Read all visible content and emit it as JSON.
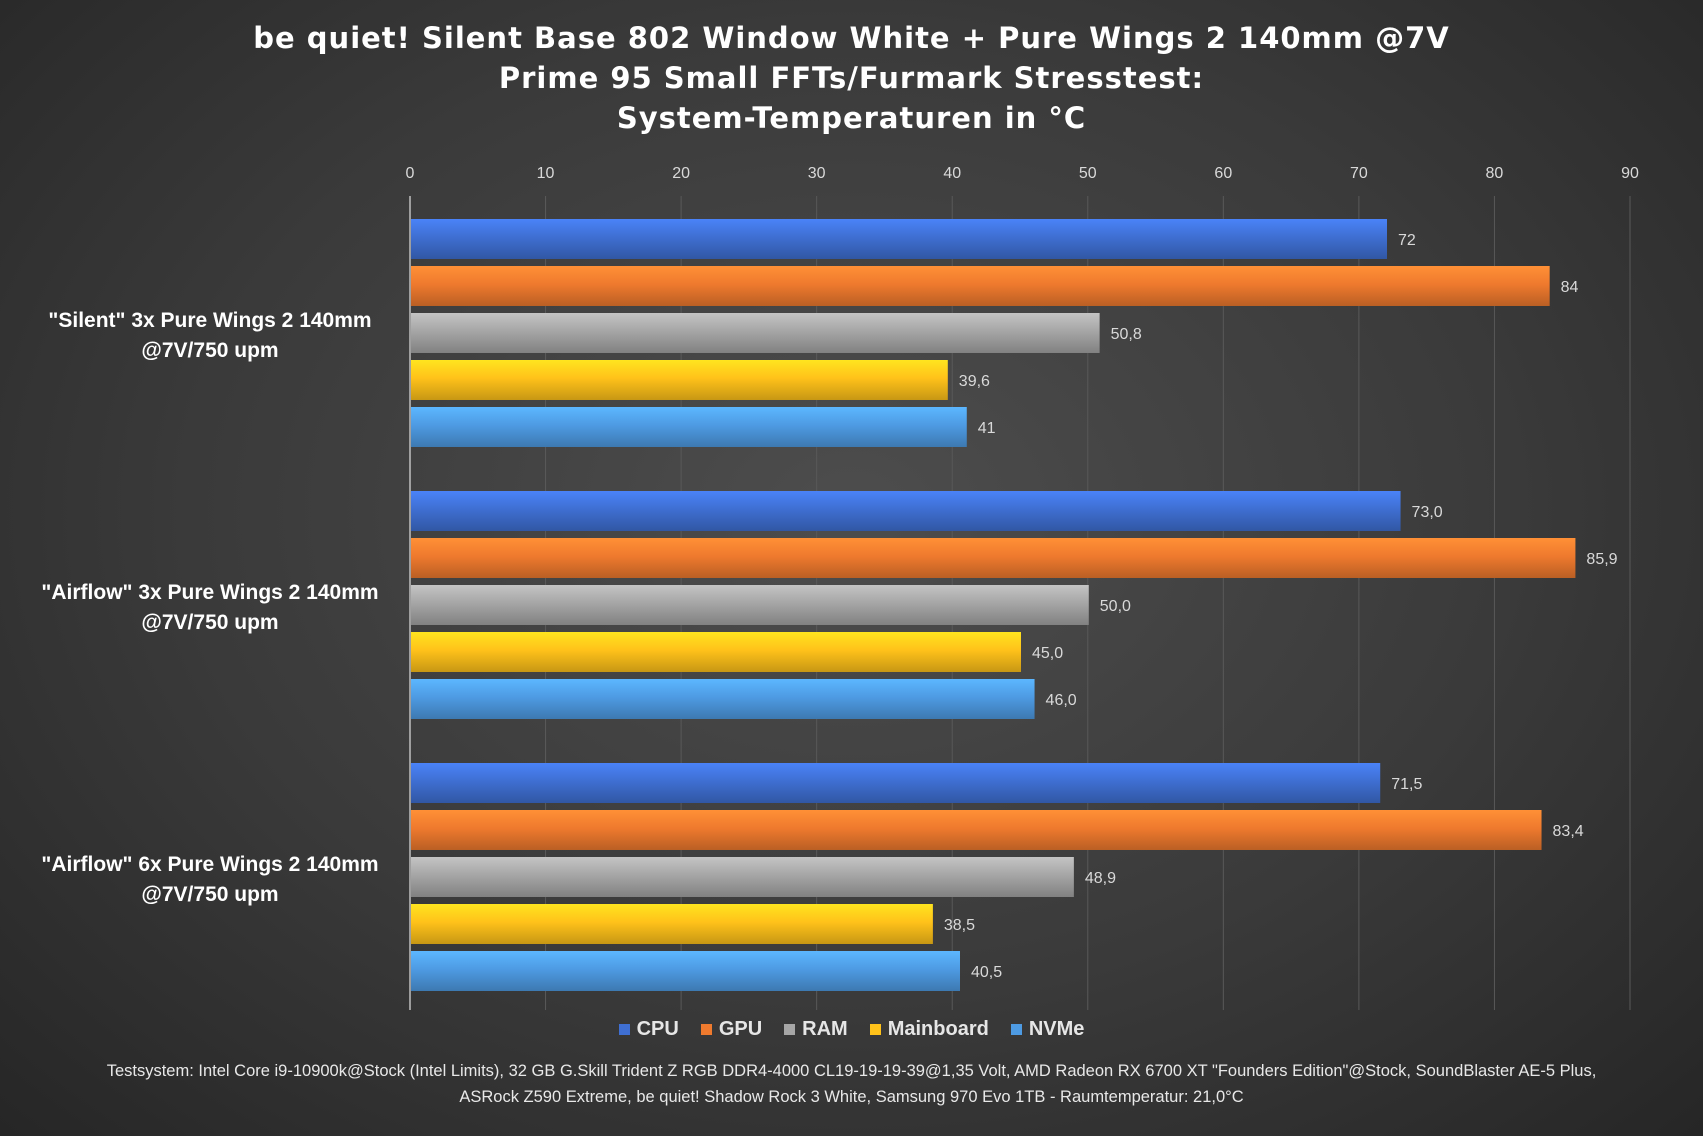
{
  "chart_data": {
    "type": "bar",
    "orientation": "horizontal",
    "title_lines": [
      "be quiet! Silent Base 802 Window White + Pure Wings 2 140mm @7V",
      "Prime 95 Small FFTs/Furmark Stresstest:",
      "System-Temperaturen in °C"
    ],
    "categories": [
      [
        "\"Silent\" 3x Pure Wings 2 140mm",
        "@7V/750 upm"
      ],
      [
        "\"Airflow\" 3x Pure Wings 2 140mm",
        "@7V/750 upm"
      ],
      [
        "\"Airflow\" 6x Pure Wings 2 140mm",
        "@7V/750 upm"
      ]
    ],
    "series": [
      {
        "name": "CPU",
        "color": "#3f6fd2",
        "values": [
          72,
          73.0,
          71.5
        ],
        "labels": [
          "72",
          "73,0",
          "71,5"
        ]
      },
      {
        "name": "GPU",
        "color": "#ef7a2e",
        "values": [
          84,
          85.9,
          83.4
        ],
        "labels": [
          "84",
          "85,9",
          "83,4"
        ]
      },
      {
        "name": "RAM",
        "color": "#a6a6a6",
        "values": [
          50.8,
          50.0,
          48.9
        ],
        "labels": [
          "50,8",
          "50,0",
          "48,9"
        ]
      },
      {
        "name": "Mainboard",
        "color": "#ffc21a",
        "values": [
          39.6,
          45.0,
          38.5
        ],
        "labels": [
          "39,6",
          "45,0",
          "38,5"
        ]
      },
      {
        "name": "NVMe",
        "color": "#4e9be3",
        "values": [
          41,
          46.0,
          40.5
        ],
        "labels": [
          "41",
          "46,0",
          "40,5"
        ]
      }
    ],
    "xlim": [
      0,
      90
    ],
    "xticks": [
      0,
      10,
      20,
      30,
      40,
      50,
      60,
      70,
      80,
      90
    ],
    "x_axis_position": "top",
    "grid": true,
    "legend_position": "bottom"
  },
  "footnote_lines": [
    "Testsystem: Intel Core i9-10900k@Stock (Intel Limits), 32 GB G.Skill Trident Z RGB DDR4-4000 CL19-19-19-39@1,35 Volt, AMD Radeon RX 6700 XT \"Founders Edition\"@Stock, SoundBlaster AE-5 Plus,",
    "ASRock Z590 Extreme, be quiet! Shadow Rock 3 White, Samsung 970 Evo 1TB - Raumtemperatur: 21,0°C"
  ]
}
